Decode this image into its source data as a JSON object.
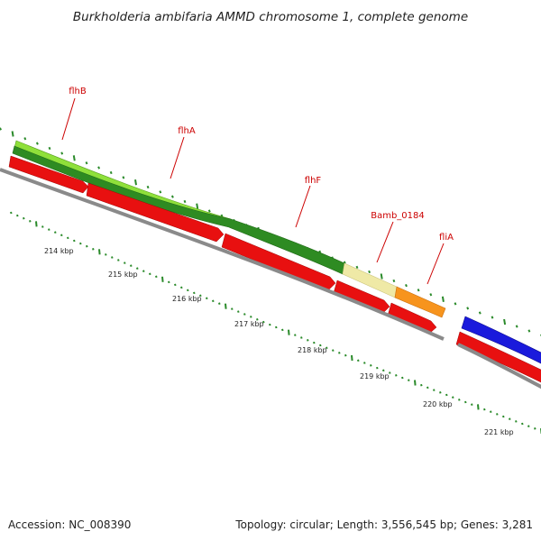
{
  "title": "Burkholderia ambifaria AMMD chromosome 1, complete genome",
  "genes": [
    {
      "label": "flhB",
      "color": "#7fdd3a",
      "start_kbp": 213.55,
      "end_kbp": 215.75
    },
    {
      "label": "flhA",
      "color": "#2e8b22",
      "start_kbp": 215.75,
      "end_kbp": 217.6
    },
    {
      "label": "flhF",
      "color": "#2e8b22",
      "start_kbp": 217.6,
      "end_kbp": 218.55
    },
    {
      "label": "Bamb_0184",
      "color": "#eee8a0",
      "start_kbp": 218.55,
      "end_kbp": 219.2
    },
    {
      "label": "fliA",
      "color": "#f7941d",
      "start_kbp": 219.2,
      "end_kbp": 219.95
    },
    {
      "label": "",
      "color": "#1a1adc",
      "start_kbp": 220.3,
      "end_kbp": 221.2
    }
  ],
  "gene_label_texts": {
    "flhB": "flhB",
    "flhA": "flhA",
    "flhF": "flhF",
    "bamb": "Bamb_0184",
    "fliA": "fliA"
  },
  "cds_color": "#e81010",
  "backbone_color": "#888888",
  "tick_color": "#2a8a2a",
  "kbp_labels": [
    "214 kbp",
    "215 kbp",
    "216 kbp",
    "217 kbp",
    "218 kbp",
    "219 kbp",
    "220 kbp",
    "221 kbp"
  ],
  "footer": {
    "accession": "Accession: NC_008390",
    "topology": "Topology: circular; Length: 3,556,545 bp; Genes: 3,281"
  }
}
